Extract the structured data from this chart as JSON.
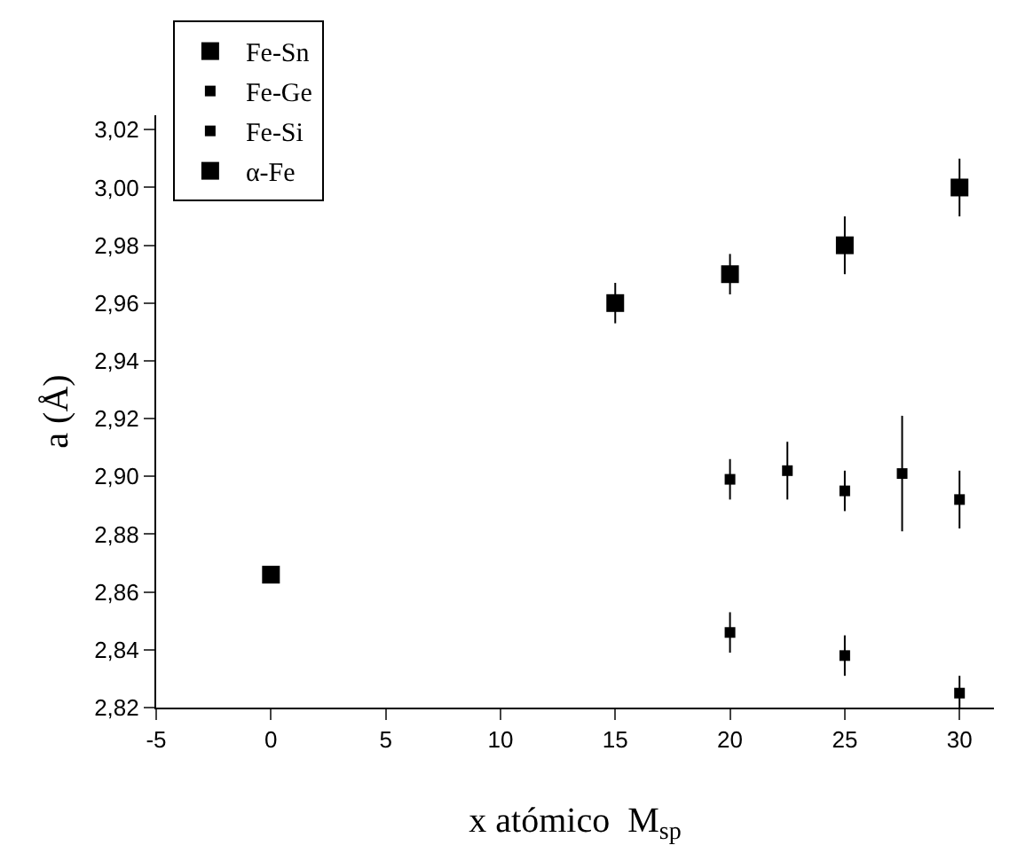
{
  "chart_data": {
    "type": "scatter",
    "xlabel": "x atómico  M$_{sp}$",
    "ylabel": "a (Å)",
    "xlim": [
      -5,
      31.5
    ],
    "xticks": [
      -5,
      0,
      5,
      10,
      15,
      20,
      25,
      30
    ],
    "ylim": [
      2.82,
      3.025
    ],
    "yticks": [
      {
        "value": 2.82,
        "label": "2,82"
      },
      {
        "value": 2.84,
        "label": "2,84"
      },
      {
        "value": 2.86,
        "label": "2,86"
      },
      {
        "value": 2.88,
        "label": "2,88"
      },
      {
        "value": 2.9,
        "label": "2,90"
      },
      {
        "value": 2.92,
        "label": "2,92"
      },
      {
        "value": 2.94,
        "label": "2,94"
      },
      {
        "value": 2.96,
        "label": "2,96"
      },
      {
        "value": 2.98,
        "label": "2,98"
      },
      {
        "value": 3.0,
        "label": "3,00"
      },
      {
        "value": 3.02,
        "label": "3,02"
      }
    ],
    "marker": "square",
    "grid": false,
    "legend": "top left",
    "series": [
      {
        "name": "Fe-Sn",
        "color": "#000000",
        "x": [
          15,
          20,
          25,
          30
        ],
        "values": [
          2.96,
          2.97,
          2.98,
          3.0
        ],
        "errors": [
          0.007,
          0.007,
          0.01,
          0.01
        ]
      },
      {
        "name": "Fe-Ge",
        "color": "#000000",
        "x": [
          20,
          22.5,
          25,
          27.5,
          30
        ],
        "values": [
          2.899,
          2.902,
          2.895,
          2.901,
          2.892
        ],
        "errors": [
          0.007,
          0.01,
          0.007,
          0.02,
          0.01
        ]
      },
      {
        "name": "Fe-Si",
        "color": "#000000",
        "x": [
          20,
          25,
          30
        ],
        "values": [
          2.846,
          2.838,
          2.825
        ],
        "errors": [
          0.007,
          0.007,
          0.006
        ]
      },
      {
        "name": "α-Fe",
        "color": "#000000",
        "x": [
          0
        ],
        "values": [
          2.866
        ]
      }
    ]
  }
}
